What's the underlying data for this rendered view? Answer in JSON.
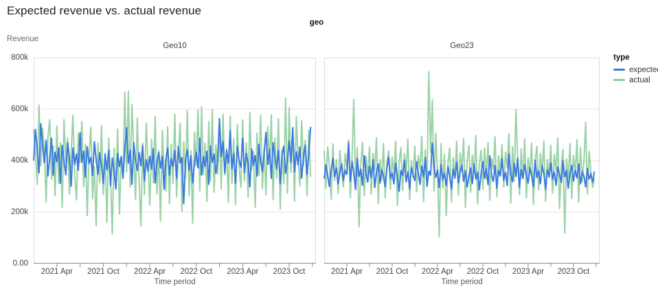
{
  "page": {
    "title": "Expected revenue vs. actual revenue"
  },
  "chart_data": {
    "type": "line",
    "title": "Expected revenue vs. actual revenue",
    "facet_field_label": "geo",
    "xlabel": "Time period",
    "ylabel": "Revenue",
    "ylim_k": [
      0,
      800
    ],
    "y_unit": "thousands",
    "grid": true,
    "y_ticks": [
      {
        "label": "800k",
        "value_k": 800
      },
      {
        "label": "600k",
        "value_k": 600
      },
      {
        "label": "400k",
        "value_k": 400
      },
      {
        "label": "200k",
        "value_k": 200
      },
      {
        "label": "0.00",
        "value_k": 0
      }
    ],
    "x_axis": {
      "n_points": 156,
      "domain_weeks": 158,
      "start": "2021 Jan",
      "end": "2023 Dec",
      "major_tick_weeks": [
        13,
        39,
        65,
        91,
        117,
        143
      ],
      "major_tick_labels": [
        "2021 Apr",
        "2021 Oct",
        "2022 Apr",
        "2022 Oct",
        "2023 Apr",
        "2023 Oct"
      ],
      "minor_tick_weeks": [
        26,
        52,
        78,
        104,
        130,
        156
      ]
    },
    "legend": {
      "title": "type",
      "position": "right",
      "items": [
        {
          "label": "expected",
          "color": "#3b79de"
        },
        {
          "label": "actual",
          "color": "#8ccc9a"
        }
      ]
    },
    "facets": [
      {
        "name": "Geo10",
        "series": [
          {
            "name": "expected",
            "values_k": [
              400,
              523,
              441,
              350,
              545,
              462,
              389,
              481,
              338,
              412,
              489,
              341,
              434,
              394,
              452,
              310,
              461,
              398,
              343,
              472,
              413,
              299,
              451,
              383,
              428,
              360,
              510,
              392,
              438,
              334,
              456,
              387,
              414,
              340,
              475,
              404,
              345,
              432,
              381,
              309,
              427,
              363,
              442,
              300,
              412,
              356,
              288,
              430,
              375,
              418,
              329,
              447,
              530,
              388,
              441,
              306,
              471,
              401,
              360,
              433,
              378,
              460,
              320,
              405,
              357,
              418,
              365,
              448,
              311,
              394,
              433,
              369,
              419,
              287,
              404,
              451,
              342,
              410,
              376,
              441,
              329,
              457,
              389,
              413,
              231,
              398,
              444,
              360,
              421,
              311,
              388,
              435,
              370,
              489,
              342,
              417,
              376,
              438,
              306,
              459,
              392,
              427,
              349,
              405,
              565,
              413,
              476,
              350,
              441,
              389,
              518,
              367,
              430,
              311,
              457,
              401,
              373,
              488,
              352,
              430,
              390,
              296,
              447,
              380,
              421,
              338,
              465,
              397,
              356,
              434,
              512,
              383,
              446,
              329,
              471,
              412,
              365,
              442,
              308,
              423,
              457,
              349,
              402,
              478,
              391,
              529,
              355,
              436,
              382,
              455,
              330,
              417,
              462,
              345,
              428,
              531
            ]
          },
          {
            "name": "actual",
            "values_k": [
              521,
              434,
              306,
              618,
              377,
              528,
              444,
              238,
              493,
              560,
              327,
              459,
              262,
              536,
              308,
              472,
              216,
              561,
              394,
              490,
              267,
              430,
              578,
              341,
              245,
              509,
              389,
              554,
              296,
              467,
              184,
              418,
              533,
              250,
              377,
              145,
              470,
              312,
              538,
              266,
              431,
              158,
              490,
              339,
              113,
              451,
              287,
              524,
              190,
              405,
              336,
              668,
              354,
              672,
              296,
              619,
              432,
              247,
              567,
              324,
              145,
              470,
              265,
              548,
              389,
              225,
              486,
              312,
              573,
              268,
              442,
              163,
              519,
              357,
              281,
              534,
              230,
              465,
              310,
              582,
              257,
              428,
              547,
              201,
              475,
              331,
              596,
              262,
              440,
              155,
              513,
              378,
              598,
              280,
              611,
              344,
              470,
              239,
              554,
              318,
              601,
              275,
              463,
              346,
              519,
              289,
              583,
              342,
              450,
              237,
              575,
              310,
              487,
              228,
              541,
              375,
              295,
              560,
              320,
              471,
              255,
              590,
              363,
              437,
              216,
              509,
              341,
              578,
              290,
              448,
              264,
              535,
              385,
              580,
              246,
              491,
              329,
              565,
              210,
              446,
              308,
              645,
              271,
              608,
              352,
              531,
              240,
              574,
              410,
              300,
              556,
              378,
              481,
              262,
              520,
              336
            ]
          }
        ]
      },
      {
        "name": "Geo23",
        "series": [
          {
            "name": "expected",
            "values_k": [
              330,
              385,
              342,
              298,
              364,
              410,
              336,
              372,
              308,
              355,
              390,
              322,
              361,
              345,
              472,
              318,
              398,
              352,
              286,
              410,
              337,
              368,
              302,
              421,
              348,
              315,
              380,
              332,
              405,
              294,
              356,
              389,
              311,
              366,
              340,
              297,
              372,
              415,
              328,
              353,
              308,
              392,
              336,
              279,
              363,
              341,
              402,
              316,
              358,
              289,
              374,
              345,
              321,
              397,
              352,
              306,
              381,
              335,
              414,
              298,
              360,
              342,
              470,
              378,
              333,
              365,
              294,
              386,
              324,
              352,
              301,
              379,
              340,
              288,
              368,
              331,
              396,
              312,
              355,
              384,
              318,
              362,
              296,
              341,
              373,
              309,
              389,
              327,
              356,
              284,
              348,
              398,
              330,
              371,
              305,
              420,
              346,
              317,
              383,
              292,
              364,
              338,
              409,
              322,
              356,
              301,
              428,
              349,
              316,
              391,
              337,
              412,
              295,
              367,
              329,
              386,
              344,
              311,
              375,
              342,
              296,
              404,
              333,
              361,
              308,
              382,
              349,
              287,
              366,
              335,
              393,
              325,
              358,
              302,
              377,
              346,
              314,
              401,
              336,
              362,
              291,
              352,
              383,
              319,
              364,
              331,
              389,
              308,
              355,
              340,
              296,
              371,
              327,
              348,
              315,
              358
            ]
          },
          {
            "name": "actual",
            "values_k": [
              438,
              290,
              455,
              376,
              248,
              467,
              322,
              405,
              270,
              441,
              358,
              296,
              430,
              365,
              482,
              254,
              417,
              640,
              310,
              452,
              141,
              388,
              472,
              263,
              419,
              337,
              455,
              268,
              430,
              361,
              490,
              232,
              405,
              321,
              468,
              253,
              396,
              440,
              287,
              416,
              340,
              477,
              224,
              391,
              452,
              281,
              430,
              355,
              485,
              247,
              402,
              333,
              458,
              276,
              421,
              365,
              496,
              239,
              444,
              316,
              748,
              430,
              638,
              280,
              508,
              355,
              102,
              468,
              292,
              426,
              185,
              390,
              451,
              238,
              415,
              330,
              478,
              264,
              432,
              357,
              489,
              216,
              398,
              460,
              275,
              424,
              348,
              500,
              230,
              387,
              442,
              287,
              451,
              326,
              472,
              244,
              409,
              365,
              495,
              258,
              420,
              342,
              464,
              296,
              435,
              370,
              507,
              233,
              456,
              318,
              601,
              398,
              265,
              448,
              329,
              487,
              254,
              412,
              346,
              471,
              228,
              395,
              458,
              284,
              430,
              352,
              478,
              240,
              406,
              334,
              462,
              272,
              425,
              358,
              490,
              211,
              378,
              446,
              117,
              409,
              331,
              468,
              250,
              421,
              347,
              483,
              236,
              452,
              316,
              400,
              550,
              268,
              438,
              355,
              294,
              330
            ]
          }
        ]
      }
    ],
    "style": {
      "expected_color": "#3b79de",
      "actual_color": "#8ccc9a",
      "gridline_color": "#e3e3e3",
      "frame_color": "#dcdcdc",
      "axis_domain_color": "#8a8a8a"
    }
  }
}
